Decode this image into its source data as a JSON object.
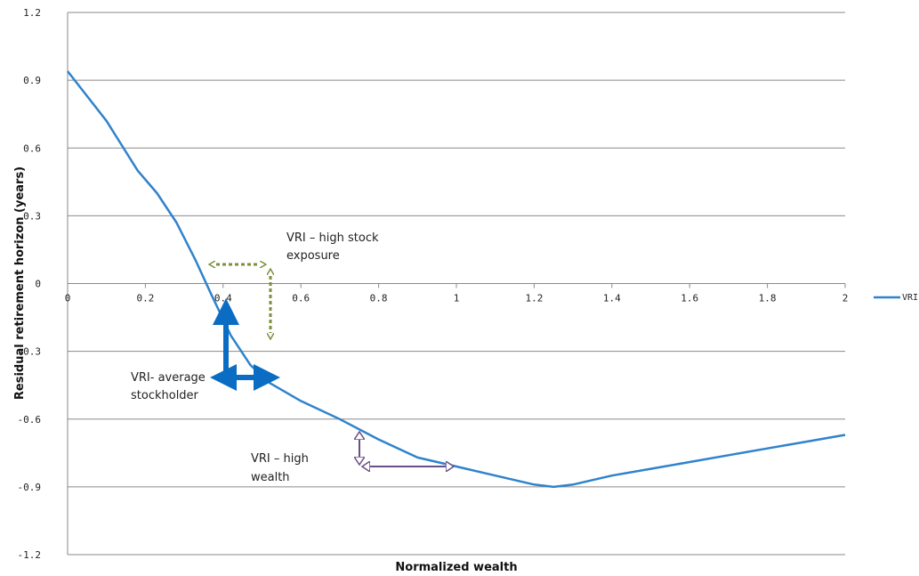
{
  "chart_data": {
    "type": "line",
    "title": "",
    "xlabel": "Normalized wealth",
    "ylabel": "Residual retirement horizon (years)",
    "xlim": [
      0,
      2
    ],
    "ylim": [
      -1.2,
      1.2
    ],
    "x_ticks": [
      "0",
      "0.2",
      "0.4",
      "0.6",
      "0.8",
      "1",
      "1.2",
      "1.4",
      "1.6",
      "1.8",
      "2"
    ],
    "y_ticks": [
      "1.2",
      "0.9",
      "0.6",
      "0.3",
      "0",
      "-0.3",
      "-0.6",
      "-0.9",
      "-1.2"
    ],
    "grid": true,
    "legend_position": "right",
    "series": [
      {
        "name": "VRI",
        "color": "#2f83cc",
        "x": [
          0,
          0.1,
          0.18,
          0.23,
          0.28,
          0.33,
          0.37,
          0.42,
          0.47,
          0.52,
          0.6,
          0.7,
          0.8,
          0.9,
          1.0,
          1.1,
          1.2,
          1.25,
          1.3,
          1.4,
          1.5,
          1.6,
          1.7,
          1.8,
          1.9,
          2.0
        ],
        "y": [
          0.94,
          0.72,
          0.5,
          0.4,
          0.27,
          0.1,
          -0.05,
          -0.23,
          -0.36,
          -0.44,
          -0.52,
          -0.6,
          -0.69,
          -0.77,
          -0.81,
          -0.85,
          -0.89,
          -0.9,
          -0.89,
          -0.85,
          -0.82,
          -0.79,
          -0.76,
          -0.73,
          -0.7,
          -0.67
        ]
      }
    ],
    "annotations": [
      {
        "id": "high-stock",
        "lines": [
          "VRI – high stock",
          "exposure"
        ],
        "color": "#7b8f3c"
      },
      {
        "id": "average",
        "lines": [
          "VRI- average",
          "stockholder"
        ],
        "color": "#0a6cc2"
      },
      {
        "id": "high-wealth",
        "lines": [
          "VRI – high",
          "wealth"
        ],
        "color": "#6a4f86"
      }
    ]
  }
}
